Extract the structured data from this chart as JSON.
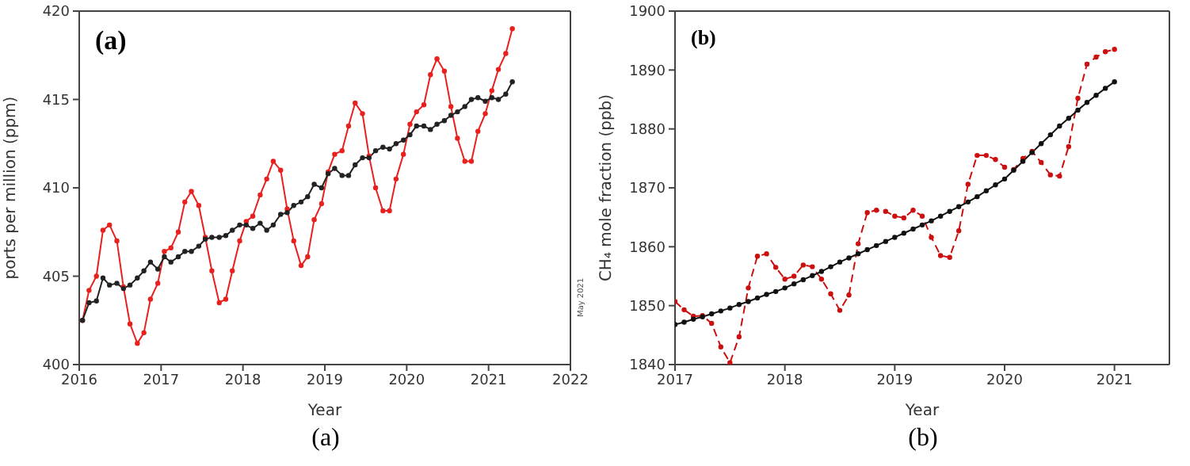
{
  "chart_data": [
    {
      "type": "line",
      "title": "(a)",
      "xlabel": "Year",
      "ylabel": "ports per million (ppm)",
      "annotations": [
        "(a)",
        "May 2021"
      ],
      "xlim": [
        2016,
        2022
      ],
      "xticks": [
        2016,
        2017,
        2018,
        2019,
        2020,
        2021,
        2022
      ],
      "ylim": [
        400,
        420
      ],
      "yticks": [
        400,
        405,
        410,
        415,
        420
      ],
      "grid": false,
      "legend": false,
      "marker": "circle",
      "series": [
        {
          "color": "#e8211f",
          "line_style": "solid",
          "x": [
            2016.04,
            2016.12,
            2016.21,
            2016.29,
            2016.37,
            2016.46,
            2016.54,
            2016.62,
            2016.71,
            2016.79,
            2016.87,
            2016.96,
            2017.04,
            2017.12,
            2017.21,
            2017.29,
            2017.37,
            2017.46,
            2017.54,
            2017.62,
            2017.71,
            2017.79,
            2017.87,
            2017.96,
            2018.04,
            2018.12,
            2018.21,
            2018.29,
            2018.37,
            2018.46,
            2018.54,
            2018.62,
            2018.71,
            2018.79,
            2018.87,
            2018.96,
            2019.04,
            2019.12,
            2019.21,
            2019.29,
            2019.37,
            2019.46,
            2019.54,
            2019.62,
            2019.71,
            2019.79,
            2019.87,
            2019.96,
            2020.04,
            2020.12,
            2020.21,
            2020.29,
            2020.37,
            2020.46,
            2020.54,
            2020.62,
            2020.71,
            2020.79,
            2020.87,
            2020.96,
            2021.04,
            2021.12,
            2021.21,
            2021.29
          ],
          "values": [
            402.5,
            404.2,
            405.0,
            407.6,
            407.9,
            407.0,
            404.4,
            402.3,
            401.2,
            401.8,
            403.7,
            404.6,
            406.4,
            406.6,
            407.5,
            409.2,
            409.8,
            409.0,
            407.2,
            405.3,
            403.5,
            403.7,
            405.3,
            407.0,
            408.1,
            408.4,
            409.6,
            410.5,
            411.5,
            411.0,
            408.8,
            407.0,
            405.6,
            406.1,
            408.2,
            409.1,
            410.9,
            411.9,
            412.1,
            413.5,
            414.8,
            414.2,
            411.8,
            410.0,
            408.7,
            408.7,
            410.5,
            411.9,
            413.6,
            414.3,
            414.7,
            416.4,
            417.3,
            416.6,
            414.6,
            412.8,
            411.5,
            411.5,
            413.2,
            414.2,
            415.5,
            416.7,
            417.6,
            419.0
          ]
        },
        {
          "color": "#222222",
          "line_style": "solid",
          "x": [
            2016.04,
            2016.12,
            2016.21,
            2016.29,
            2016.37,
            2016.46,
            2016.54,
            2016.62,
            2016.71,
            2016.79,
            2016.87,
            2016.96,
            2017.04,
            2017.12,
            2017.21,
            2017.29,
            2017.37,
            2017.46,
            2017.54,
            2017.62,
            2017.71,
            2017.79,
            2017.87,
            2017.96,
            2018.04,
            2018.12,
            2018.21,
            2018.29,
            2018.37,
            2018.46,
            2018.54,
            2018.62,
            2018.71,
            2018.79,
            2018.87,
            2018.96,
            2019.04,
            2019.12,
            2019.21,
            2019.29,
            2019.37,
            2019.46,
            2019.54,
            2019.62,
            2019.71,
            2019.79,
            2019.87,
            2019.96,
            2020.04,
            2020.12,
            2020.21,
            2020.29,
            2020.37,
            2020.46,
            2020.54,
            2020.62,
            2020.71,
            2020.79,
            2020.87,
            2020.96,
            2021.04,
            2021.12,
            2021.21,
            2021.29
          ],
          "values": [
            402.5,
            403.5,
            403.6,
            404.9,
            404.5,
            404.6,
            404.3,
            404.5,
            404.9,
            405.3,
            405.8,
            405.4,
            406.1,
            405.8,
            406.1,
            406.4,
            406.4,
            406.7,
            407.1,
            407.2,
            407.2,
            407.3,
            407.6,
            407.9,
            407.9,
            407.7,
            408.0,
            407.6,
            407.9,
            408.5,
            408.6,
            409.0,
            409.2,
            409.5,
            410.2,
            410.0,
            410.8,
            411.1,
            410.7,
            410.7,
            411.3,
            411.7,
            411.7,
            412.1,
            412.3,
            412.2,
            412.5,
            412.7,
            413.0,
            413.5,
            413.5,
            413.3,
            413.6,
            413.8,
            414.1,
            414.3,
            414.6,
            415.0,
            415.1,
            414.9,
            415.1,
            415.0,
            415.3,
            416.0
          ]
        }
      ]
    },
    {
      "type": "line",
      "title": "(b)",
      "xlabel": "Year",
      "ylabel": "CH₄ mole fraction (ppb)",
      "annotations": [
        "(b)"
      ],
      "xlim": [
        2017,
        2021.5
      ],
      "xticks": [
        2017,
        2018,
        2019,
        2020,
        2021
      ],
      "ylim": [
        1840,
        1900
      ],
      "yticks": [
        1840,
        1850,
        1860,
        1870,
        1880,
        1890,
        1900
      ],
      "grid": false,
      "legend": false,
      "marker": "circle",
      "series": [
        {
          "color": "#cc1010",
          "line_style": "dashed",
          "x": [
            2017,
            2017.083,
            2017.167,
            2017.25,
            2017.333,
            2017.417,
            2017.5,
            2017.583,
            2017.667,
            2017.75,
            2017.833,
            2017.917,
            2018,
            2018.083,
            2018.167,
            2018.25,
            2018.333,
            2018.417,
            2018.5,
            2018.583,
            2018.667,
            2018.75,
            2018.833,
            2018.917,
            2019,
            2019.083,
            2019.167,
            2019.25,
            2019.333,
            2019.417,
            2019.5,
            2019.583,
            2019.667,
            2019.75,
            2019.833,
            2019.917,
            2020,
            2020.083,
            2020.167,
            2020.25,
            2020.333,
            2020.417,
            2020.5,
            2020.583,
            2020.667,
            2020.75,
            2020.833,
            2020.917,
            2021
          ],
          "values": [
            1850.7,
            1849.3,
            1848.2,
            1848.3,
            1847.0,
            1843.0,
            1840.3,
            1844.7,
            1853.0,
            1858.4,
            1858.8,
            1856.5,
            1854.5,
            1855.0,
            1856.9,
            1856.6,
            1854.5,
            1852.0,
            1849.2,
            1851.8,
            1860.5,
            1865.8,
            1866.2,
            1866.0,
            1865.2,
            1864.9,
            1866.2,
            1865.2,
            1861.6,
            1858.5,
            1858.2,
            1862.7,
            1870.6,
            1875.5,
            1875.5,
            1874.8,
            1873.5,
            1873.1,
            1875.0,
            1876.2,
            1874.3,
            1872.2,
            1872.0,
            1877.0,
            1885.2,
            1891.0,
            1892.2,
            1893.1,
            1893.5
          ]
        },
        {
          "color": "#111111",
          "line_style": "solid",
          "x": [
            2017,
            2017.083,
            2017.167,
            2017.25,
            2017.333,
            2017.417,
            2017.5,
            2017.583,
            2017.667,
            2017.75,
            2017.833,
            2017.917,
            2018,
            2018.083,
            2018.167,
            2018.25,
            2018.333,
            2018.417,
            2018.5,
            2018.583,
            2018.667,
            2018.75,
            2018.833,
            2018.917,
            2019,
            2019.083,
            2019.167,
            2019.25,
            2019.333,
            2019.417,
            2019.5,
            2019.583,
            2019.667,
            2019.75,
            2019.833,
            2019.917,
            2020,
            2020.083,
            2020.167,
            2020.25,
            2020.333,
            2020.417,
            2020.5,
            2020.583,
            2020.667,
            2020.75,
            2020.833,
            2020.917,
            2021
          ],
          "values": [
            1846.8,
            1847.2,
            1847.7,
            1848.1,
            1848.6,
            1849.1,
            1849.6,
            1850.2,
            1850.7,
            1851.3,
            1851.9,
            1852.4,
            1853.0,
            1853.7,
            1854.4,
            1855.1,
            1855.8,
            1856.6,
            1857.4,
            1858.1,
            1858.8,
            1859.5,
            1860.2,
            1860.9,
            1861.6,
            1862.3,
            1863.0,
            1863.7,
            1864.4,
            1865.2,
            1866.0,
            1866.8,
            1867.6,
            1868.5,
            1869.5,
            1870.5,
            1871.5,
            1873.0,
            1874.5,
            1876.0,
            1877.5,
            1879.0,
            1880.5,
            1881.8,
            1883.2,
            1884.5,
            1885.7,
            1886.9,
            1888.0
          ]
        }
      ]
    }
  ]
}
